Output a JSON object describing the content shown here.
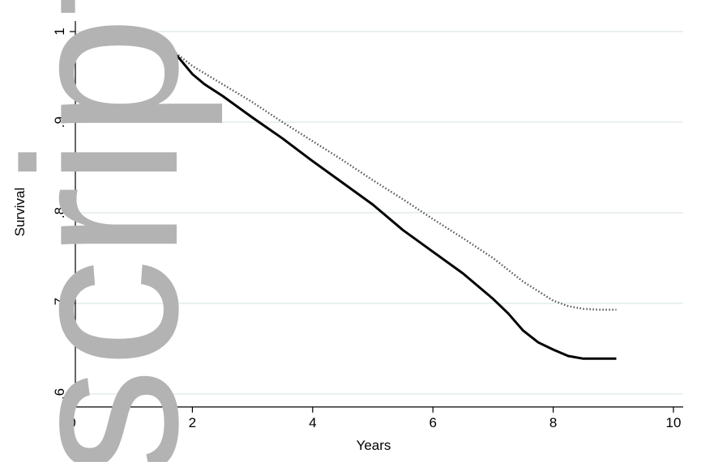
{
  "chart_data": {
    "type": "line",
    "title": "",
    "xlabel": "Years",
    "ylabel": "Survival",
    "xlim": [
      0,
      10
    ],
    "ylim": [
      0.6,
      1.0
    ],
    "xticks": [
      0,
      2,
      4,
      6,
      8,
      10
    ],
    "yticks": [
      0.6,
      0.7,
      0.8,
      0.9,
      1.0
    ],
    "xtick_labels": [
      "0",
      "2",
      "4",
      "6",
      "8",
      "10"
    ],
    "ytick_labels": [
      ".6",
      ".7",
      ".8",
      ".9",
      "1"
    ],
    "grid": true,
    "legend": "none",
    "series": [
      {
        "style": "solid",
        "color": "#000000",
        "x": [
          0.25,
          0.5,
          1.0,
          1.2,
          1.4,
          1.6,
          1.75,
          2.0,
          2.2,
          2.5,
          3.0,
          3.5,
          4.0,
          4.5,
          5.0,
          5.5,
          6.0,
          6.5,
          7.0,
          7.25,
          7.5,
          7.75,
          8.0,
          8.25,
          8.5,
          8.75,
          9.05
        ],
        "y": [
          1.0,
          0.999,
          0.998,
          0.997,
          0.988,
          0.98,
          0.973,
          0.953,
          0.942,
          0.929,
          0.905,
          0.882,
          0.857,
          0.833,
          0.809,
          0.781,
          0.757,
          0.733,
          0.705,
          0.689,
          0.67,
          0.657,
          0.649,
          0.642,
          0.639,
          0.639,
          0.639
        ]
      },
      {
        "style": "dotted",
        "color": "#555555",
        "x": [
          0.25,
          0.5,
          1.0,
          1.2,
          1.4,
          1.6,
          1.75,
          2.0,
          2.5,
          3.0,
          3.5,
          4.0,
          4.5,
          5.0,
          5.5,
          6.0,
          6.5,
          7.0,
          7.5,
          8.0,
          8.25,
          8.5,
          8.75,
          9.05
        ],
        "y": [
          1.0,
          0.999,
          0.998,
          0.997,
          0.99,
          0.983,
          0.975,
          0.962,
          0.942,
          0.922,
          0.9,
          0.879,
          0.858,
          0.836,
          0.815,
          0.793,
          0.772,
          0.75,
          0.724,
          0.703,
          0.697,
          0.694,
          0.693,
          0.693
        ]
      }
    ]
  },
  "watermark": {
    "text": "script",
    "color": "#b3b3b3"
  }
}
